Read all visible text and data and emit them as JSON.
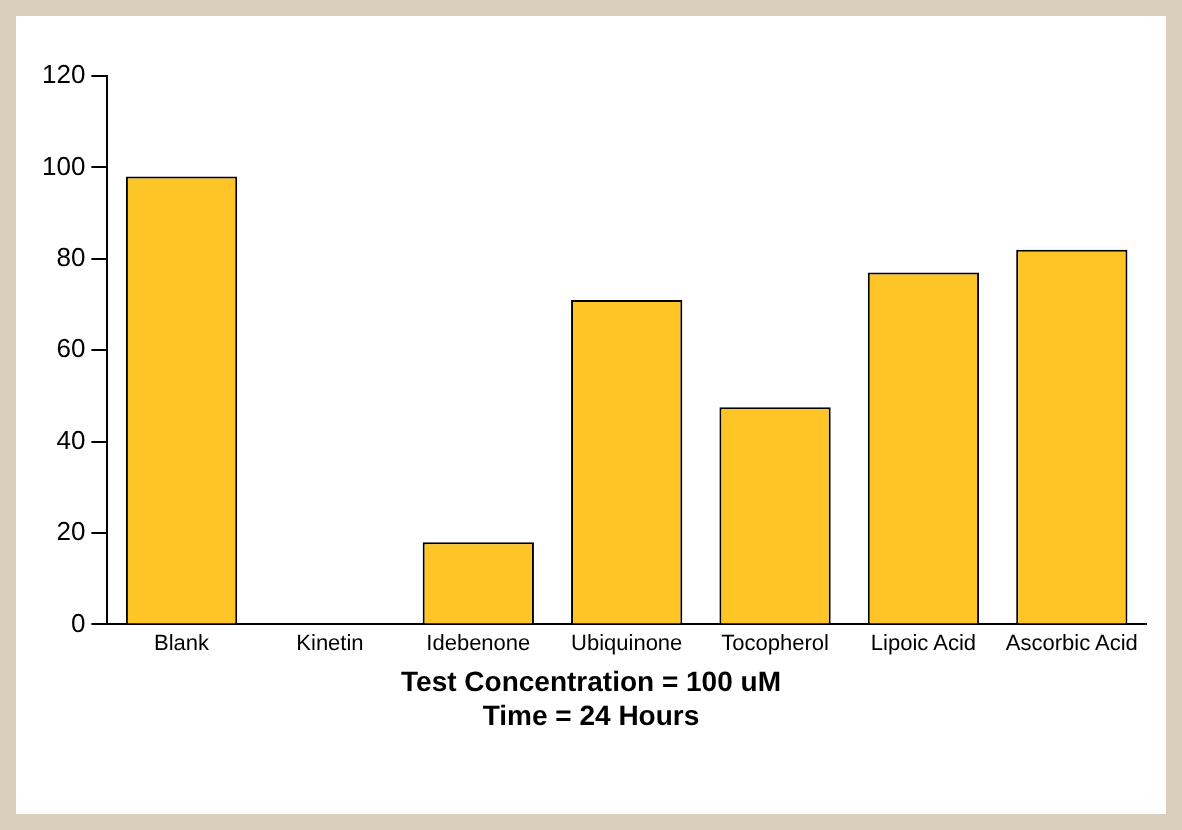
{
  "chart_data": {
    "type": "bar",
    "xlabel": "Test Concentration = 100 uM",
    "annotations": [
      "Time = 24 Hours"
    ],
    "categories": [
      "Blank",
      "Kinetin",
      "Idebenone",
      "Ubiquinone",
      "Tocopherol",
      "Lipoic Acid",
      "Ascorbic Acid"
    ],
    "values": [
      98,
      0,
      18,
      71,
      47.5,
      77,
      82
    ],
    "color": "#ffc425",
    "ylim": [
      0,
      120
    ],
    "yticks": [
      0,
      20,
      40,
      60,
      80,
      100,
      120
    ],
    "grid": false,
    "legend": false
  }
}
